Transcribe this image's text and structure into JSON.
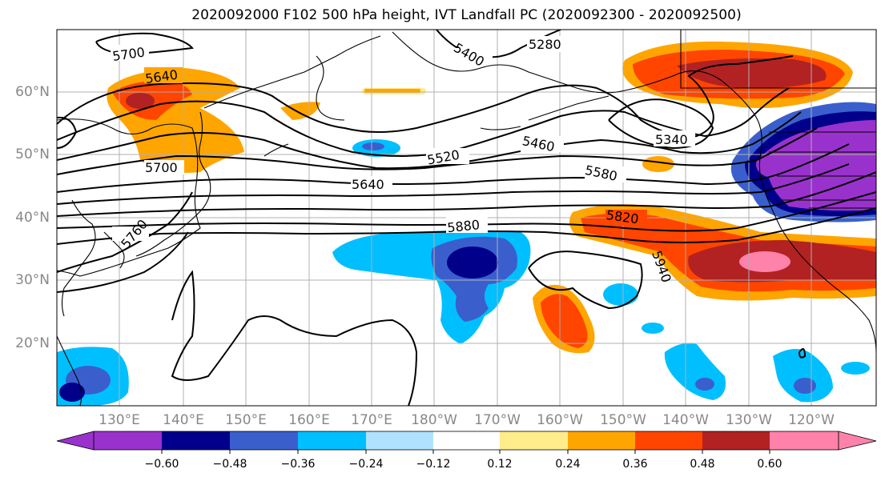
{
  "title": "2020092000 F102 500 hPa height, IVT Landfall PC (2020092300 - 2020092500)",
  "lon_labels": [
    "130°E",
    "140°E",
    "150°E",
    "160°E",
    "170°E",
    "180°W",
    "170°W",
    "160°W",
    "150°W",
    "140°W",
    "130°W",
    "120°W"
  ],
  "lat_labels": [
    "60°N",
    "50°N",
    "40°N",
    "30°N",
    "20°N"
  ],
  "contour_labels": [
    "5700",
    "5640",
    "5700",
    "5760",
    "5280",
    "5340",
    "5460",
    "5520",
    "5580",
    "5640",
    "5820",
    "5880",
    "5940",
    "5400"
  ],
  "colorbar": {
    "ticks": [
      "−0.60",
      "−0.48",
      "−0.36",
      "−0.24",
      "−0.12",
      "0.12",
      "0.24",
      "0.36",
      "0.48",
      "0.60"
    ],
    "colors": [
      "#9932cc",
      "#00008b",
      "#3a5fcd",
      "#00bfff",
      "#b0e2ff",
      "#ffffff",
      "#ffec8b",
      "#ffa500",
      "#ff4500",
      "#b22222",
      "#ff82ab"
    ]
  },
  "land_color": "#000000",
  "grid_color": "#b0b0b0"
}
